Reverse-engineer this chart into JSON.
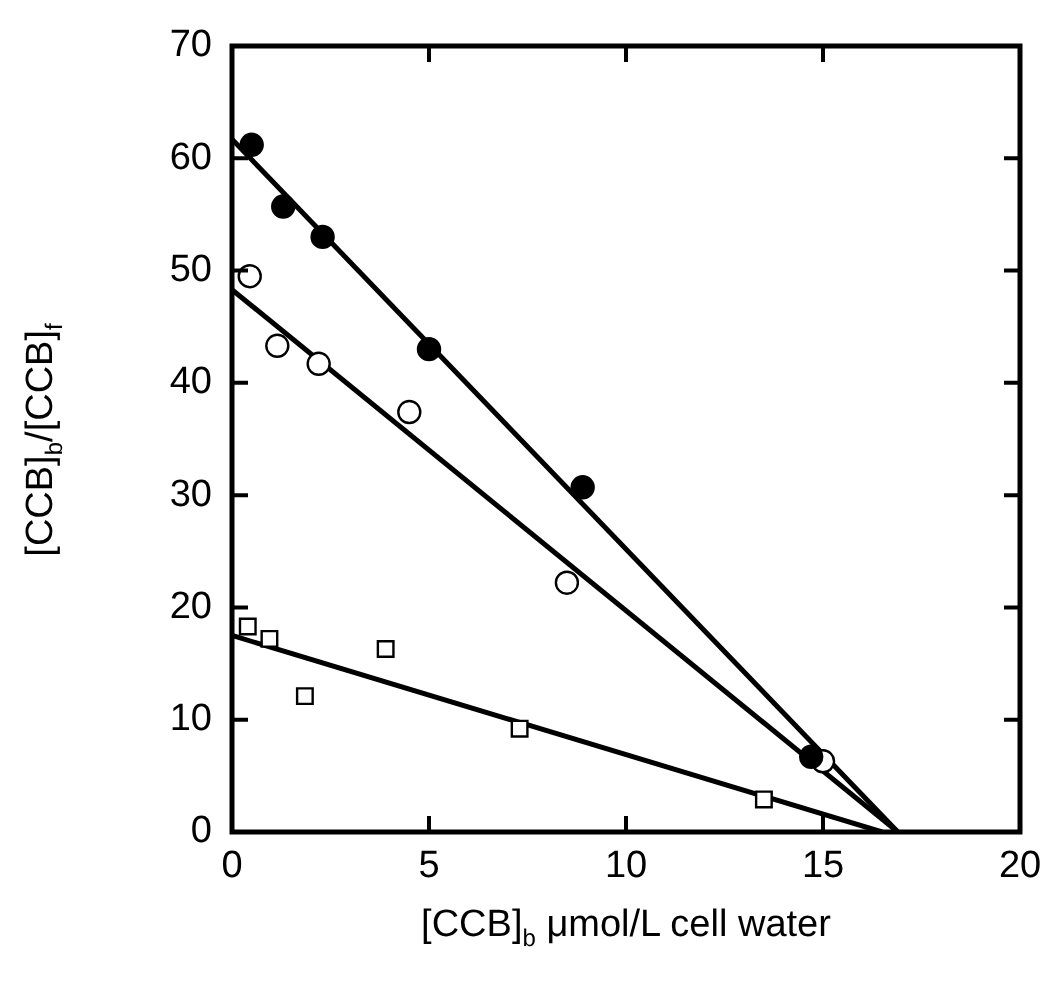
{
  "chart_data": {
    "type": "scatter",
    "xlabel": "[CCB]$_{b}$ μmol/L cell water",
    "ylabel": "[CCB]$_{b}$/[CCB]$_{f}$",
    "xlim": [
      0,
      20
    ],
    "ylim": [
      0,
      70
    ],
    "xticks": [
      0,
      5,
      10,
      15,
      20
    ],
    "yticks": [
      0,
      10,
      20,
      30,
      40,
      50,
      60,
      70
    ],
    "grid": false,
    "legend": false,
    "series": [
      {
        "marker": "circle",
        "color": "#000000",
        "x": [
          0.5,
          1.3,
          2.3,
          5,
          8.9,
          14.7
        ],
        "values": [
          61.2,
          55.7,
          53,
          43,
          30.7,
          6.7
        ]
      },
      {
        "marker": "circle",
        "color": "#ffffff",
        "x": [
          0.45,
          1.15,
          2.2,
          4.5,
          8.5,
          15
        ],
        "values": [
          49.5,
          43.3,
          41.7,
          37.4,
          22.2,
          6.3
        ]
      },
      {
        "marker": "square",
        "color": "#ffffff",
        "x": [
          0.4,
          0.95,
          1.85,
          3.9,
          7.3,
          13.5
        ],
        "values": [
          18.3,
          17.2,
          12.1,
          16.3,
          9.2,
          2.9
        ]
      },
      {
        "type": "line",
        "marker": "none",
        "color": "#000000",
        "x": [
          0,
          16.9
        ],
        "values": [
          61.7,
          0
        ]
      },
      {
        "type": "line",
        "marker": "none",
        "color": "#000000",
        "x": [
          0,
          16.9
        ],
        "values": [
          48.3,
          0
        ]
      },
      {
        "type": "line",
        "marker": "none",
        "color": "#000000",
        "x": [
          0,
          16.5
        ],
        "values": [
          17.5,
          0
        ]
      }
    ]
  }
}
